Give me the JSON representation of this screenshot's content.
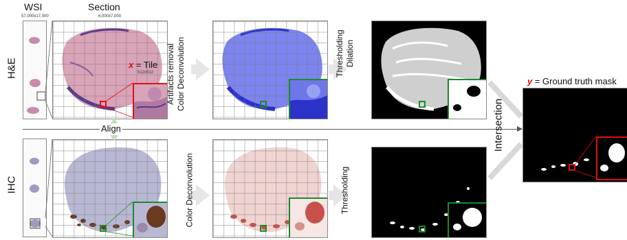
{
  "headers": {
    "wsi": "WSI",
    "section": "Section"
  },
  "dimensions": {
    "wsi": "57,000x17,000",
    "section": "6,000x7,000",
    "tile": "512x512"
  },
  "rows": {
    "he": "H&E",
    "ihc": "IHC"
  },
  "tile_label": {
    "var": "x",
    "text": " = Tile"
  },
  "align_label": "Align",
  "steps": {
    "he_step1_line1": "Artifacts removal",
    "he_step1_line2": "Color Deconvolution",
    "he_step2_line1": "Thresholding",
    "he_step2_line2": "Dilation",
    "ihc_step1": "Color Deconvolution",
    "ihc_step2": "Thresholding",
    "merge": "Intersection"
  },
  "output_label": {
    "var": "y",
    "text": " = Ground truth mask"
  },
  "colors": {
    "he_tissue": "#d9a3b8",
    "he_dark": "#5a3a8a",
    "blue": "#3c46e0",
    "ihc_tissue": "#b8b8d4",
    "ihc_brown": "#6a3a1e",
    "red_stain": "#c8504a",
    "red_accent": "#e01010",
    "green_accent": "#1a8a2a",
    "arrow": "#e6e6e6"
  }
}
